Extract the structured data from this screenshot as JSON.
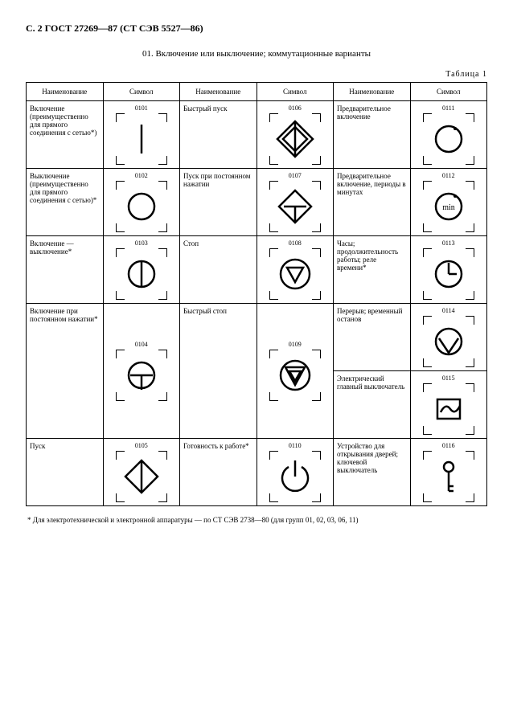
{
  "header": "С. 2 ГОСТ 27269—87 (СТ СЭВ 5527—86)",
  "section_title": "01. Включение или выключение; коммутационные варианты",
  "table_label": "Таблица 1",
  "headers": {
    "name": "Наименование",
    "symbol": "Символ"
  },
  "col1": [
    {
      "name": "Включение (преимущественно для прямого соединения с сетью*)",
      "code": "0101",
      "icon": "line"
    },
    {
      "name": "Выключение (преимущественно для прямого соединения с сетью)*",
      "code": "0102",
      "icon": "circle"
    },
    {
      "name": "Включение — выключение*",
      "code": "0103",
      "icon": "circle-line"
    },
    {
      "name": "Включение при постоянном нажатии*",
      "code": "0104",
      "icon": "circle-T"
    },
    {
      "name": "Пуск",
      "code": "0105",
      "icon": "diamond-line"
    }
  ],
  "col2": [
    {
      "name": "Быстрый пуск",
      "code": "0106",
      "icon": "diamond-phi"
    },
    {
      "name": "Пуск при постоянном нажатии",
      "code": "0107",
      "icon": "diamond-T"
    },
    {
      "name": "Стоп",
      "code": "0108",
      "icon": "circle-tri-down"
    },
    {
      "name": "Быстрый стоп",
      "code": "0109",
      "icon": "circle-tri-double"
    },
    {
      "name": "Готовность к работе*",
      "code": "0110",
      "icon": "power"
    }
  ],
  "col3": [
    {
      "name": "Предварительное включение",
      "code": "0111",
      "icon": "circle-dot"
    },
    {
      "name": "Предварительное включение, периоды в минутах",
      "code": "0112",
      "icon": "circle-min"
    },
    {
      "name": "Часы; продолжительность работы; реле времени*",
      "code": "0113",
      "icon": "clock"
    },
    {
      "name": "Перерыв; временный останов",
      "code": "0114",
      "icon": "circle-V"
    },
    {
      "name": "Электрический главный выключатель",
      "code": "0115",
      "icon": "switch-box"
    },
    {
      "name": "Устройство для открывания дверей; ключевой выключатель",
      "code": "0116",
      "icon": "key"
    }
  ],
  "footnote": "* Для электротехнической и электронной аппаратуры — по СТ СЭВ 2738—80 (для групп 01, 02, 03, 06, 11)"
}
